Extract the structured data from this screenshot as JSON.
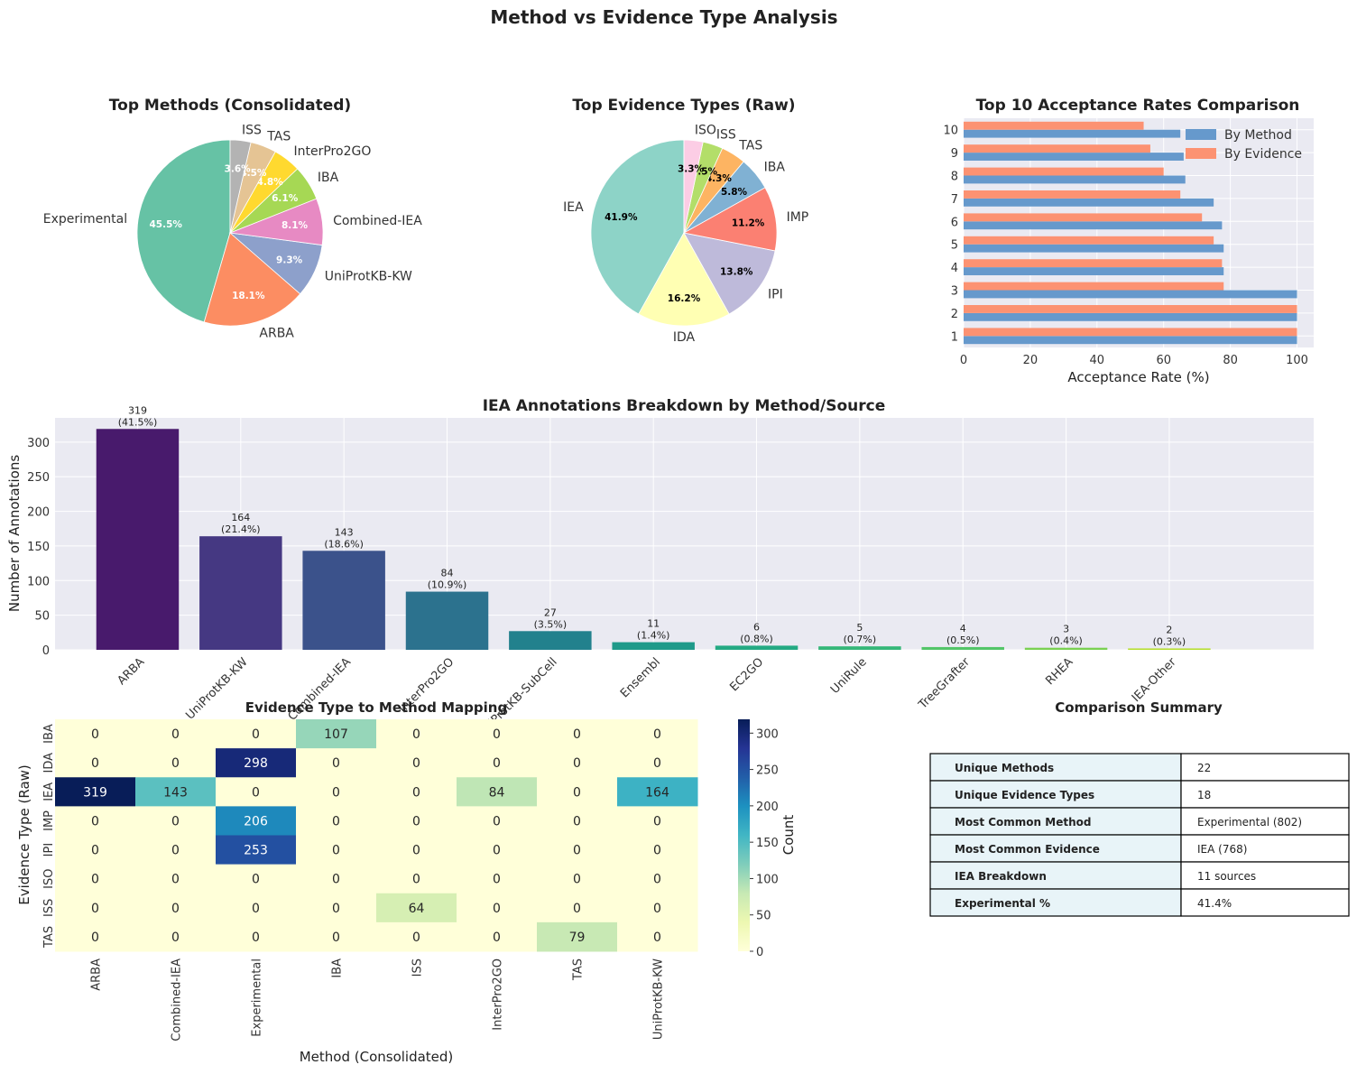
{
  "figure": {
    "title": "Method vs Evidence Type Analysis"
  },
  "chart_data": [
    {
      "type": "pie",
      "title": "Top Methods (Consolidated)",
      "slices": [
        {
          "label": "Experimental",
          "value": 45.5,
          "pct_label": "45.5%",
          "color": "#66c2a5"
        },
        {
          "label": "ARBA",
          "value": 18.1,
          "pct_label": "18.1%",
          "color": "#fc8d62"
        },
        {
          "label": "UniProtKB-KW",
          "value": 9.3,
          "pct_label": "9.3%",
          "color": "#8da0cb"
        },
        {
          "label": "Combined-IEA",
          "value": 8.1,
          "pct_label": "8.1%",
          "color": "#e78ac3"
        },
        {
          "label": "IBA",
          "value": 6.1,
          "pct_label": "6.1%",
          "color": "#a6d854"
        },
        {
          "label": "InterPro2GO",
          "value": 4.8,
          "pct_label": "4.8%",
          "color": "#ffd92f"
        },
        {
          "label": "TAS",
          "value": 4.5,
          "pct_label": "4.5%",
          "color": "#e5c494"
        },
        {
          "label": "ISS",
          "value": 3.6,
          "pct_label": "3.6%",
          "color": "#b3b3b3"
        }
      ],
      "pct_color": "#ffffff"
    },
    {
      "type": "pie",
      "title": "Top Evidence Types (Raw)",
      "slices": [
        {
          "label": "IEA",
          "value": 41.9,
          "pct_label": "41.9%",
          "color": "#8dd3c7"
        },
        {
          "label": "IDA",
          "value": 16.2,
          "pct_label": "16.2%",
          "color": "#ffffb3"
        },
        {
          "label": "IPI",
          "value": 13.8,
          "pct_label": "13.8%",
          "color": "#bebada"
        },
        {
          "label": "IMP",
          "value": 11.2,
          "pct_label": "11.2%",
          "color": "#fb8072"
        },
        {
          "label": "IBA",
          "value": 5.8,
          "pct_label": "5.8%",
          "color": "#80b1d3"
        },
        {
          "label": "TAS",
          "value": 4.3,
          "pct_label": "4.3%",
          "color": "#fdb462"
        },
        {
          "label": "ISS",
          "value": 3.5,
          "pct_label": "3.5%",
          "color": "#b3de69"
        },
        {
          "label": "ISO",
          "value": 3.3,
          "pct_label": "3.3%",
          "color": "#fccde5"
        }
      ],
      "pct_color": "#000000"
    },
    {
      "type": "bar",
      "orientation": "horizontal",
      "title": "Top 10 Acceptance Rates Comparison",
      "xlabel": "Acceptance Rate (%)",
      "ylabel": "",
      "xlim": [
        0,
        105
      ],
      "xticks": [
        0,
        20,
        40,
        60,
        80,
        100
      ],
      "categories": [
        "1",
        "2",
        "3",
        "4",
        "5",
        "6",
        "7",
        "8",
        "9",
        "10"
      ],
      "series": [
        {
          "name": "By Method",
          "color": "#6699cc",
          "values": [
            100,
            100,
            100,
            78,
            78,
            77.5,
            75,
            66.5,
            66,
            65
          ]
        },
        {
          "name": "By Evidence",
          "color": "#fc9272",
          "values": [
            100,
            100,
            78,
            77.5,
            75,
            71.5,
            65,
            60,
            56,
            54
          ]
        }
      ],
      "legend": "top-right",
      "grid": true
    },
    {
      "type": "bar",
      "title": "IEA Annotations Breakdown by Method/Source",
      "xlabel": "",
      "ylabel": "Number of Annotations",
      "ylim": [
        0,
        335
      ],
      "yticks": [
        0,
        50,
        100,
        150,
        200,
        250,
        300
      ],
      "categories": [
        "ARBA",
        "UniProtKB-KW",
        "Combined-IEA",
        "InterPro2GO",
        "UniProtKB-SubCell",
        "Ensembl",
        "EC2GO",
        "UniRule",
        "TreeGrafter",
        "RHEA",
        "IEA-Other"
      ],
      "values": [
        319,
        164,
        143,
        84,
        27,
        11,
        6,
        5,
        4,
        3,
        2
      ],
      "pct_labels": [
        "(41.5%)",
        "(21.4%)",
        "(18.6%)",
        "(10.9%)",
        "(3.5%)",
        "(1.4%)",
        "(0.8%)",
        "(0.7%)",
        "(0.5%)",
        "(0.4%)",
        "(0.3%)"
      ],
      "colors": [
        "#481a6c",
        "#453882",
        "#3b528b",
        "#2c728e",
        "#22818d",
        "#1f9a8a",
        "#24aa83",
        "#35b779",
        "#53c568",
        "#7ad151",
        "#b5de2b"
      ],
      "grid": true
    },
    {
      "type": "heatmap",
      "title": "Evidence Type to Method Mapping",
      "xlabel": "Method (Consolidated)",
      "ylabel": "Evidence Type (Raw)",
      "columns": [
        "ARBA",
        "Combined-IEA",
        "Experimental",
        "IBA",
        "ISS",
        "InterPro2GO",
        "TAS",
        "UniProtKB-KW"
      ],
      "rows": [
        "IBA",
        "IDA",
        "IEA",
        "IMP",
        "IPI",
        "ISO",
        "ISS",
        "TAS"
      ],
      "values": [
        [
          0,
          0,
          0,
          107,
          0,
          0,
          0,
          0
        ],
        [
          0,
          0,
          298,
          0,
          0,
          0,
          0,
          0
        ],
        [
          319,
          143,
          0,
          0,
          0,
          84,
          0,
          164
        ],
        [
          0,
          0,
          206,
          0,
          0,
          0,
          0,
          0
        ],
        [
          0,
          0,
          253,
          0,
          0,
          0,
          0,
          0
        ],
        [
          0,
          0,
          0,
          0,
          0,
          0,
          0,
          0
        ],
        [
          0,
          0,
          0,
          0,
          64,
          0,
          0,
          0
        ],
        [
          0,
          0,
          0,
          0,
          0,
          0,
          79,
          0
        ]
      ],
      "vmin": 0,
      "vmax": 319,
      "colorbar_label": "Count",
      "colorbar_ticks": [
        0,
        50,
        100,
        150,
        200,
        250,
        300
      ],
      "colormap": "YlGnBu"
    },
    {
      "type": "table",
      "title": "Comparison Summary",
      "rows": [
        [
          "Unique Methods",
          "22"
        ],
        [
          "Unique Evidence Types",
          "18"
        ],
        [
          "Most Common Method",
          "Experimental (802)"
        ],
        [
          "Most Common Evidence",
          "IEA (768)"
        ],
        [
          "IEA Breakdown",
          "11 sources"
        ],
        [
          "Experimental %",
          "41.4%"
        ]
      ],
      "header_color": "#e8f4f8"
    }
  ]
}
